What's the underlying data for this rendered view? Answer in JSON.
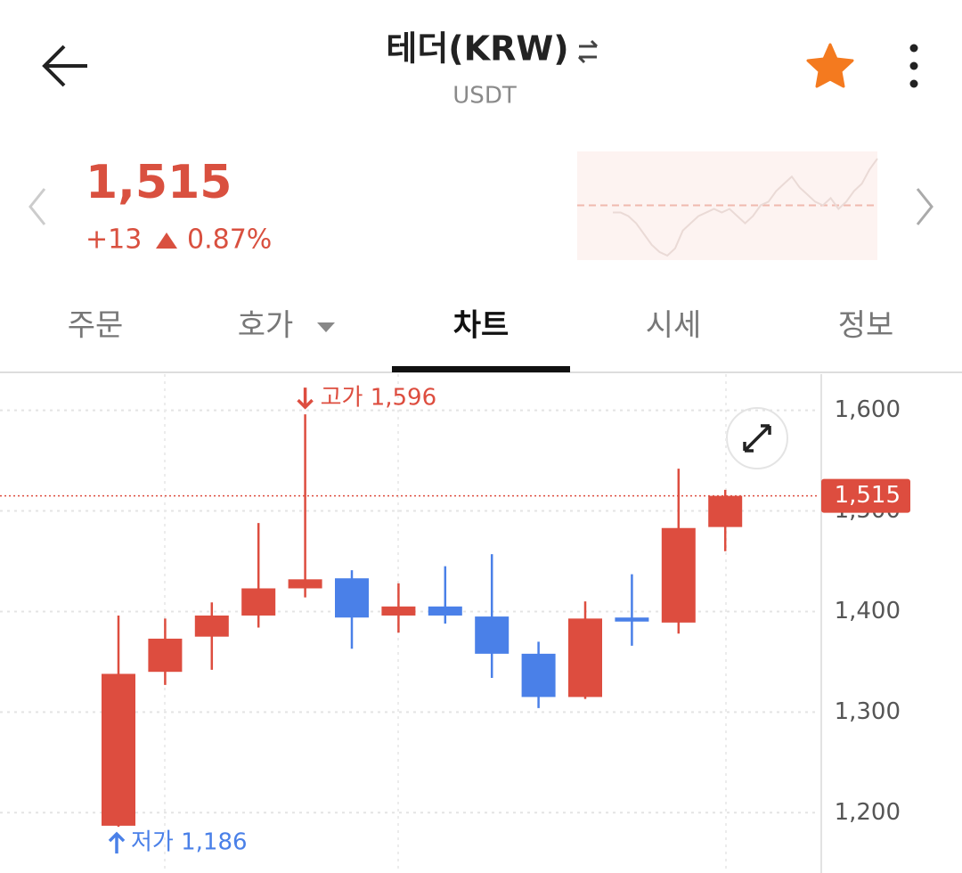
{
  "header": {
    "title": "테더(KRW)",
    "subtitle": "USDT"
  },
  "ticker": {
    "price": "1,515",
    "change": "+13",
    "change_rate": "0.87%",
    "sparkline": {
      "values": [
        1500,
        1500,
        1499,
        1497,
        1494,
        1491,
        1489,
        1488,
        1490,
        1495,
        1497,
        1499,
        1500,
        1501,
        1500,
        1501,
        1499,
        1497,
        1499,
        1502,
        1503,
        1506,
        1508,
        1510,
        1507,
        1505,
        1503,
        1502,
        1504,
        1501,
        1503,
        1506,
        1508,
        1512,
        1515
      ],
      "baseline": 1502,
      "min": 1486,
      "max": 1517
    }
  },
  "tabs": [
    "주문",
    "호가",
    "차트",
    "시세",
    "정보"
  ],
  "active_tab": 2,
  "chart_data": {
    "type": "candlestick",
    "open": [
      1187,
      1340,
      1375,
      1396,
      1423,
      1433,
      1396,
      1405,
      1395,
      1358,
      1315,
      1394,
      1389,
      1484
    ],
    "high": [
      1396,
      1393,
      1409,
      1488,
      1596,
      1441,
      1428,
      1445,
      1457,
      1370,
      1410,
      1437,
      1542,
      1521
    ],
    "low": [
      1186,
      1327,
      1342,
      1384,
      1414,
      1363,
      1379,
      1388,
      1334,
      1304,
      1313,
      1366,
      1378,
      1460
    ],
    "close": [
      1338,
      1373,
      1396,
      1423,
      1432,
      1394,
      1405,
      1396,
      1358,
      1315,
      1393,
      1390,
      1483,
      1515
    ],
    "up_color": "#dd4d3f",
    "down_color": "#4a80e8",
    "ylim": [
      1140,
      1636
    ],
    "yticks": [
      {
        "value": 1200,
        "label": "1,200"
      },
      {
        "value": 1300,
        "label": "1,300"
      },
      {
        "value": 1400,
        "label": "1,400"
      },
      {
        "value": 1500,
        "label": "1,500"
      },
      {
        "value": 1600,
        "label": "1,600"
      }
    ],
    "grid": true,
    "current": {
      "value": 1515,
      "label": "1,515"
    },
    "annotations": {
      "high": "고가 1,596",
      "low": "저가 1,186"
    }
  }
}
